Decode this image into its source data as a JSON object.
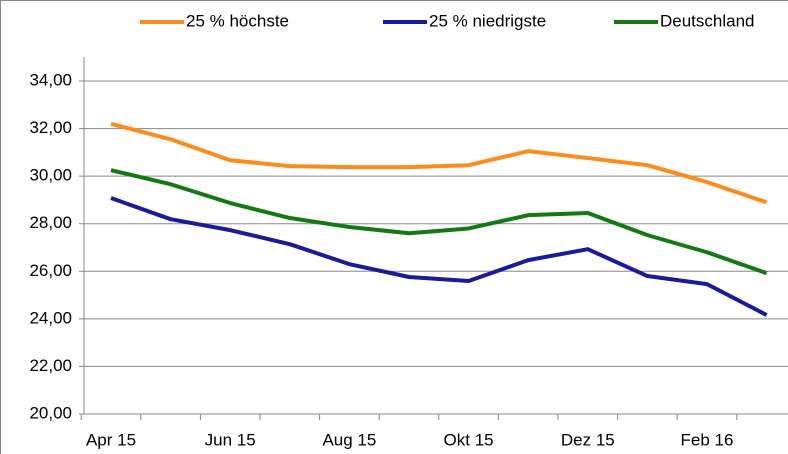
{
  "chart_data": {
    "type": "line",
    "categories": [
      "Apr 15",
      null,
      "Jun 15",
      null,
      "Aug 15",
      null,
      "Okt 15",
      null,
      "Dez 15",
      null,
      "Feb 16",
      null
    ],
    "series": [
      {
        "name": "25 % höchste",
        "color": "#ff8c1a",
        "values": [
          32.2,
          31.55,
          30.67,
          30.42,
          30.38,
          30.38,
          30.46,
          31.05,
          30.76,
          30.46,
          29.75,
          28.9
        ]
      },
      {
        "name": "25 % niedrigste",
        "color": "#1a1a9c",
        "values": [
          29.08,
          28.19,
          27.73,
          27.14,
          26.3,
          25.76,
          25.59,
          26.47,
          26.93,
          25.8,
          25.46,
          24.16
        ]
      },
      {
        "name": "Deutschland",
        "color": "#137a13",
        "values": [
          30.25,
          29.66,
          28.87,
          28.24,
          27.86,
          27.6,
          27.8,
          28.36,
          28.45,
          27.52,
          26.8,
          25.92
        ]
      }
    ],
    "ylim": [
      20,
      34
    ],
    "yticks": [
      {
        "value": 20,
        "label": "20,00"
      },
      {
        "value": 22,
        "label": "22,00"
      },
      {
        "value": 24,
        "label": "24,00"
      },
      {
        "value": 26,
        "label": "26,00"
      },
      {
        "value": 28,
        "label": "28,00"
      },
      {
        "value": 30,
        "label": "30,00"
      },
      {
        "value": 32,
        "label": "32,00"
      },
      {
        "value": 34,
        "label": "34,00"
      }
    ],
    "grid": true,
    "legend": "top"
  }
}
